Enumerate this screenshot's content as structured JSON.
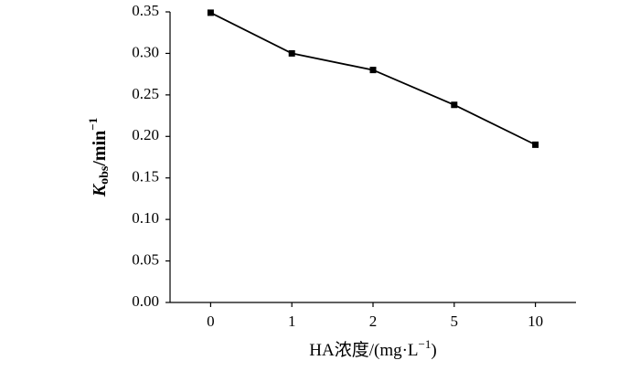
{
  "chart_data": {
    "type": "line",
    "ylabel": {
      "main": "K",
      "sub": "obs",
      "rest": "/min",
      "sup": "−1"
    },
    "xlabel": {
      "main": "HA浓度/(mg·L",
      "sup": "−1",
      "end": ")"
    },
    "categories": [
      "0",
      "1",
      "2",
      "5",
      "10"
    ],
    "series": [
      {
        "color": "#000000",
        "values": [
          0.349,
          0.3,
          0.28,
          0.238,
          0.19
        ]
      }
    ],
    "ylim": [
      0,
      0.35
    ],
    "yticks": [
      {
        "value": 0,
        "label": "0.00"
      },
      {
        "value": 0.05,
        "label": "0.05"
      },
      {
        "value": 0.1,
        "label": "0.10"
      },
      {
        "value": 0.15,
        "label": "0.15"
      },
      {
        "value": 0.2,
        "label": "0.20"
      },
      {
        "value": 0.25,
        "label": "0.25"
      },
      {
        "value": 0.3,
        "label": "0.30"
      },
      {
        "value": 0.35,
        "label": "0.35"
      }
    ]
  }
}
